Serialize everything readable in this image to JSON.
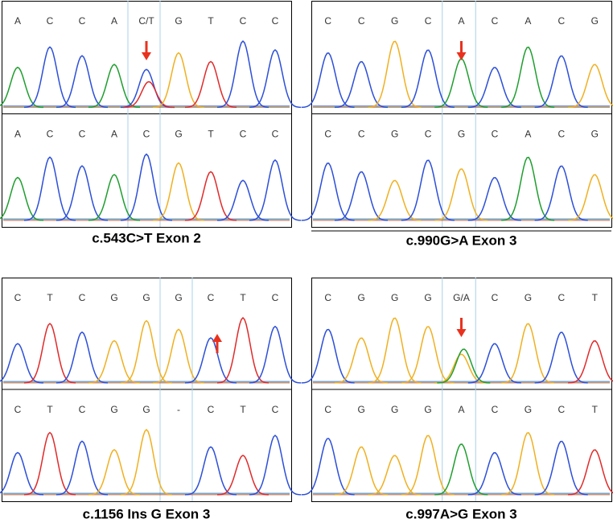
{
  "panels": [
    {
      "top_bases": [
        "A",
        "C",
        "C",
        "A",
        "C/T",
        "G",
        "T",
        "C",
        "C"
      ],
      "bottom_bases": [
        "A",
        "C",
        "C",
        "A",
        "C",
        "G",
        "T",
        "C",
        "C"
      ],
      "caption": "c.543C>T Exon 2"
    },
    {
      "top_bases": [
        "C",
        "C",
        "G",
        "C",
        "A",
        "C",
        "A",
        "C",
        "G"
      ],
      "bottom_bases": [
        "C",
        "C",
        "G",
        "C",
        "G",
        "C",
        "A",
        "C",
        "G"
      ],
      "caption": "c.990G>A Exon 3"
    },
    {
      "top_bases": [
        "C",
        "T",
        "C",
        "G",
        "G",
        "G",
        "C",
        "T",
        "C"
      ],
      "bottom_bases": [
        "C",
        "T",
        "C",
        "G",
        "G",
        "-",
        "C",
        "T",
        "C"
      ],
      "caption": "c.1156 Ins G Exon 3"
    },
    {
      "top_bases": [
        "C",
        "G",
        "G",
        "G",
        "G/A",
        "C",
        "G",
        "C",
        "T"
      ],
      "bottom_bases": [
        "C",
        "G",
        "G",
        "G",
        "A",
        "C",
        "G",
        "C",
        "T"
      ],
      "caption": "c.997A>G Exon 3"
    }
  ]
}
